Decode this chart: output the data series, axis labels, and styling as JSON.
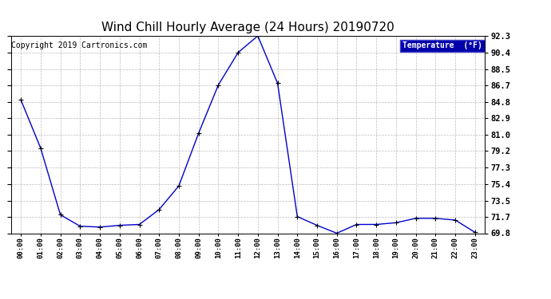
{
  "title": "Wind Chill Hourly Average (24 Hours) 20190720",
  "copyright": "Copyright 2019 Cartronics.com",
  "legend_label": "Temperature  (°F)",
  "hours": [
    0,
    1,
    2,
    3,
    4,
    5,
    6,
    7,
    8,
    9,
    10,
    11,
    12,
    13,
    14,
    15,
    16,
    17,
    18,
    19,
    20,
    21,
    22,
    23
  ],
  "values": [
    85.0,
    79.5,
    71.9,
    70.6,
    70.5,
    70.7,
    70.8,
    72.5,
    75.2,
    81.2,
    86.7,
    90.4,
    92.3,
    86.9,
    71.7,
    70.7,
    69.8,
    70.8,
    70.8,
    71.0,
    71.5,
    71.5,
    71.3,
    69.9
  ],
  "ylim_min": 69.8,
  "ylim_max": 92.3,
  "line_color": "#0000cc",
  "marker_color": "#000000",
  "bg_color": "#ffffff",
  "plot_bg_color": "#ffffff",
  "grid_color": "#bbbbbb",
  "title_fontsize": 11,
  "copyright_fontsize": 7,
  "legend_bg": "#0000aa",
  "legend_fg": "#ffffff",
  "yticks": [
    69.8,
    71.7,
    73.5,
    75.4,
    77.3,
    79.2,
    81.0,
    82.9,
    84.8,
    86.7,
    88.5,
    90.4,
    92.3
  ]
}
